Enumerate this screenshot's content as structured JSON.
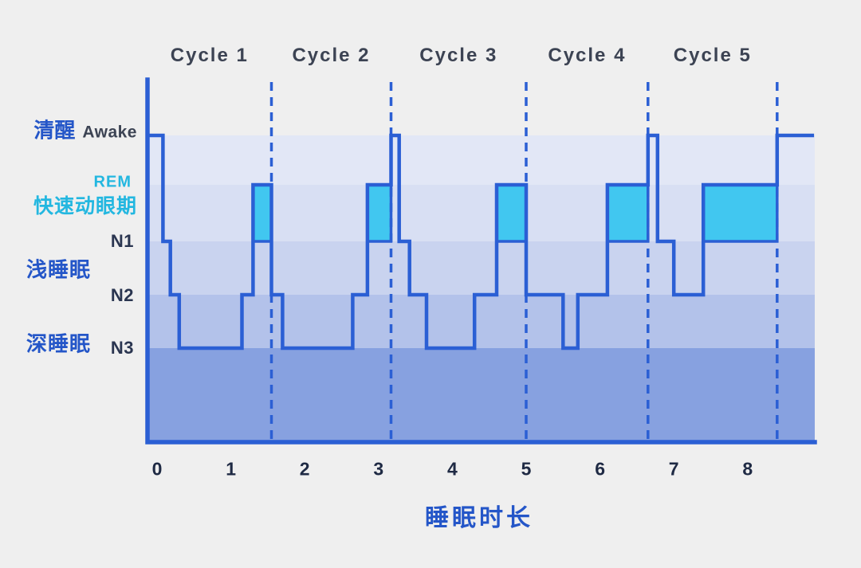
{
  "chart_data": {
    "type": "area",
    "subtype": "hypnogram-step",
    "title": "",
    "xlabel": "睡眠时长",
    "x_unit": "hours",
    "x_ticks": [
      "0",
      "1",
      "2",
      "3",
      "4",
      "5",
      "6",
      "7",
      "8"
    ],
    "x_range": [
      0,
      8.9
    ],
    "grid": "off",
    "stage_order": [
      "awake",
      "rem",
      "n1",
      "n2",
      "n3"
    ],
    "cycles": [
      {
        "label": "Cycle 1",
        "start_h": 0,
        "end_h": 1.55
      },
      {
        "label": "Cycle 2",
        "start_h": 1.55,
        "end_h": 3.17
      },
      {
        "label": "Cycle 3",
        "start_h": 3.17,
        "end_h": 5.0
      },
      {
        "label": "Cycle 4",
        "start_h": 5.0,
        "end_h": 6.65
      },
      {
        "label": "Cycle 5",
        "start_h": 6.65,
        "end_h": 8.4
      }
    ],
    "cycle_boundaries": [
      1.55,
      3.17,
      5.0,
      6.65,
      8.4
    ],
    "segments": [
      [
        0,
        0.08,
        "awake"
      ],
      [
        0.08,
        0.18,
        "n1"
      ],
      [
        0.18,
        0.3,
        "n2"
      ],
      [
        0.3,
        1.15,
        "n3"
      ],
      [
        1.15,
        1.3,
        "n2"
      ],
      [
        1.3,
        1.55,
        "rem"
      ],
      [
        1.55,
        1.7,
        "n2"
      ],
      [
        1.7,
        2.65,
        "n3"
      ],
      [
        2.65,
        2.85,
        "n2"
      ],
      [
        2.85,
        3.17,
        "rem"
      ],
      [
        3.17,
        3.28,
        "awake"
      ],
      [
        3.28,
        3.42,
        "n1"
      ],
      [
        3.42,
        3.65,
        "n2"
      ],
      [
        3.65,
        4.3,
        "n3"
      ],
      [
        4.3,
        4.6,
        "n2"
      ],
      [
        4.6,
        5.0,
        "rem"
      ],
      [
        5.0,
        5.5,
        "n2"
      ],
      [
        5.5,
        5.7,
        "n3"
      ],
      [
        5.7,
        6.1,
        "n2"
      ],
      [
        6.1,
        6.65,
        "rem"
      ],
      [
        6.65,
        6.78,
        "awake"
      ],
      [
        6.78,
        7.0,
        "n1"
      ],
      [
        7.0,
        7.4,
        "n2"
      ],
      [
        7.4,
        8.4,
        "rem"
      ],
      [
        8.4,
        8.9,
        "awake"
      ]
    ],
    "colors": {
      "line": "#2b5fd4",
      "rem_fill": "#41c7f0",
      "bands": [
        "#e2e7f6",
        "#d8dff3",
        "#c9d3ef",
        "#b3c2ea",
        "#87a1e0"
      ],
      "background": "#efefef",
      "cyan_text": "#23b7e0",
      "blue_text": "#2456c8",
      "dark_text": "#3c4353"
    }
  },
  "y_axis_labels": {
    "awake_cn": "清醒",
    "awake_en": "Awake",
    "rem": "REM",
    "rem_cn": "快速动眼期",
    "n1": "N1",
    "light_sleep_cn": "浅睡眠",
    "n2": "N2",
    "deep_sleep_cn": "深睡眠",
    "n3": "N3"
  }
}
